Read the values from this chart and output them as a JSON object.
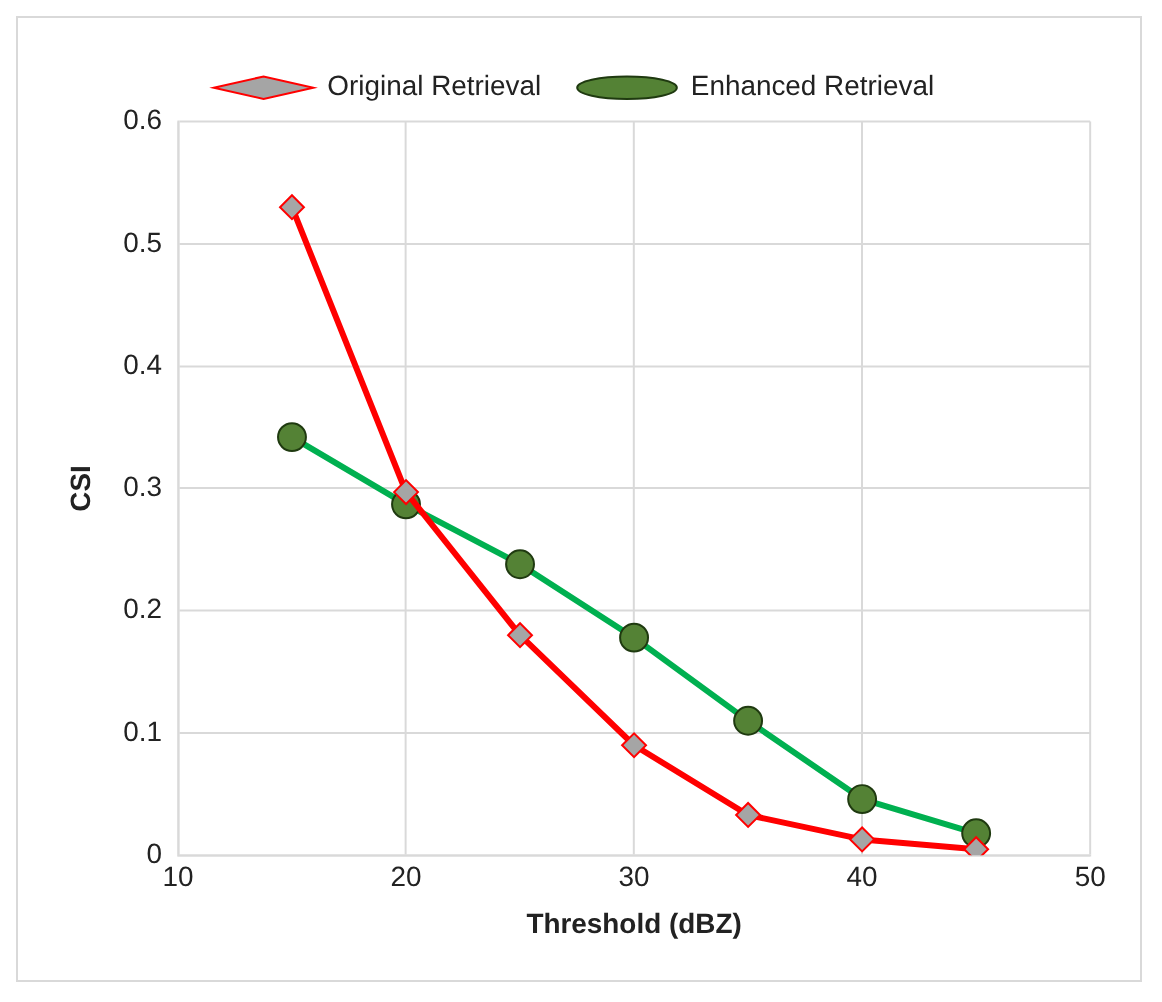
{
  "chart_data": {
    "type": "line",
    "xlabel": "Threshold (dBZ)",
    "ylabel": "CSI",
    "x": [
      15,
      20,
      25,
      30,
      35,
      40,
      45
    ],
    "series": [
      {
        "name": "Original Retrieval",
        "color": "#ff0000",
        "marker": "diamond",
        "values": [
          0.53,
          0.297,
          0.18,
          0.09,
          0.033,
          0.013,
          0.005
        ]
      },
      {
        "name": "Enhanced Retrieval",
        "color": "#00b050",
        "marker": "circle",
        "values": [
          0.342,
          0.287,
          0.238,
          0.178,
          0.11,
          0.046,
          0.018
        ]
      }
    ],
    "xlim": [
      10,
      50
    ],
    "xticks": [
      10,
      20,
      30,
      40,
      50
    ],
    "ylim": [
      0,
      0.6
    ],
    "yticks": [
      0,
      0.1,
      0.2,
      0.3,
      0.4,
      0.5,
      0.6
    ],
    "grid": true,
    "legend": "top",
    "line_style": "solid"
  }
}
